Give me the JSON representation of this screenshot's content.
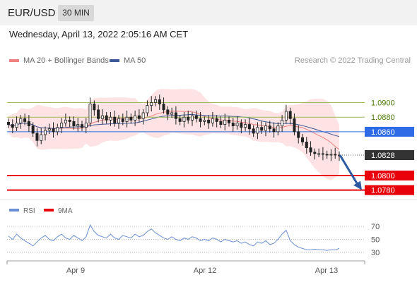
{
  "header": {
    "instrument": "EUR/USD",
    "timeframe_label": "30 MIN"
  },
  "datetime": "Wednesday, April 13, 2022 2:05:16 AM CET",
  "legend": {
    "ma20": "MA 20 + Bollinger Bands",
    "ma50": "MA 50",
    "credit": "Research © 2022 Trading Central"
  },
  "colors": {
    "ma20": "#f08080",
    "ma50": "#3b5998",
    "resistance": "#9bbb59",
    "pivot": "#2e6be6",
    "support": "#e8000b",
    "price": "#333333",
    "band_fill": "#fde3e3",
    "rsi": "#6b8fd6",
    "rsi_ma": "#e8000b",
    "arrow": "#2d5aa0"
  },
  "price_levels": [
    {
      "label": "1.0900",
      "value": 1.09,
      "kind": "resistance"
    },
    {
      "label": "1.0880",
      "value": 1.088,
      "kind": "resistance"
    },
    {
      "label": "1.0860",
      "value": 1.086,
      "kind": "pivot"
    },
    {
      "label": "1.0828",
      "value": 1.0828,
      "kind": "last"
    },
    {
      "label": "1.0800",
      "value": 1.08,
      "kind": "support"
    },
    {
      "label": "1.0780",
      "value": 1.078,
      "kind": "support"
    }
  ],
  "rsi_panel": {
    "legend_rsi": "RSI",
    "legend_ma": "9MA",
    "levels": [
      "70",
      "50",
      "30"
    ]
  },
  "x_axis": {
    "labels": [
      "Apr 9",
      "Apr 12",
      "Apr 13"
    ]
  },
  "chart_data": {
    "type": "candlestick",
    "price_close": [
      1.087,
      1.0866,
      1.0872,
      1.0878,
      1.0874,
      1.0868,
      1.0858,
      1.0848,
      1.0856,
      1.0862,
      1.0864,
      1.086,
      1.0866,
      1.0872,
      1.0876,
      1.0874,
      1.0868,
      1.087,
      1.0866,
      1.0872,
      1.0898,
      1.089,
      1.0878,
      1.0882,
      1.0876,
      1.088,
      1.0872,
      1.0878,
      1.0874,
      1.088,
      1.0876,
      1.0882,
      1.0878,
      1.0886,
      1.0896,
      1.09,
      1.0904,
      1.0898,
      1.089,
      1.0884,
      1.0886,
      1.0878,
      1.0874,
      1.088,
      1.0876,
      1.0882,
      1.0878,
      1.0874,
      1.0876,
      1.0872,
      1.0878,
      1.0874,
      1.087,
      1.0876,
      1.0872,
      1.0868,
      1.0872,
      1.0866,
      1.087,
      1.0864,
      1.0858,
      1.0866,
      1.0862,
      1.0868,
      1.0864,
      1.086,
      1.0868,
      1.0876,
      1.0888,
      1.0878,
      1.086,
      1.0852,
      1.0846,
      1.0838,
      1.0832,
      1.083,
      1.083,
      1.0829,
      1.0828,
      1.0829,
      1.0828,
      1.0828
    ],
    "rsi": [
      55,
      50,
      58,
      52,
      48,
      44,
      40,
      46,
      52,
      56,
      50,
      48,
      54,
      58,
      52,
      50,
      56,
      52,
      48,
      54,
      72,
      62,
      56,
      54,
      52,
      58,
      52,
      50,
      56,
      54,
      52,
      58,
      54,
      56,
      62,
      66,
      60,
      56,
      52,
      50,
      54,
      50,
      48,
      52,
      50,
      54,
      52,
      48,
      50,
      48,
      52,
      50,
      46,
      50,
      48,
      46,
      48,
      44,
      46,
      42,
      40,
      46,
      44,
      48,
      42,
      44,
      50,
      58,
      64,
      48,
      42,
      38,
      36,
      34,
      34,
      35,
      34,
      34,
      33,
      34,
      34,
      36
    ],
    "rsi_levels": [
      70,
      50,
      30
    ],
    "ylim": [
      1.077,
      1.0915
    ]
  }
}
